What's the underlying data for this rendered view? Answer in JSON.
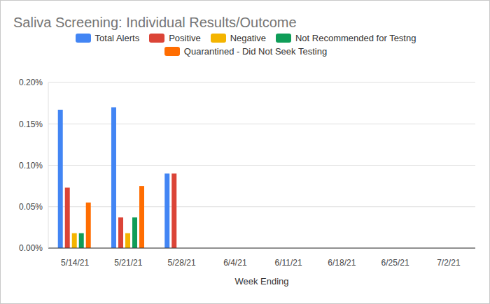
{
  "chart_data": {
    "type": "bar",
    "title": "Saliva Screening: Individual Results/Outcome",
    "xlabel": "Week Ending",
    "categories": [
      "5/14/21",
      "5/21/21",
      "5/28/21",
      "6/4/21",
      "6/11/21",
      "6/18/21",
      "6/25/21",
      "7/2/21"
    ],
    "series": [
      {
        "name": "Total Alerts",
        "color": "#4285f4",
        "values": [
          0.167,
          0.17,
          0.09,
          null,
          null,
          null,
          null,
          null
        ]
      },
      {
        "name": "Positive",
        "color": "#db4437",
        "values": [
          0.073,
          0.037,
          0.09,
          null,
          null,
          null,
          null,
          null
        ]
      },
      {
        "name": "Negative",
        "color": "#f4b400",
        "values": [
          0.018,
          0.018,
          null,
          null,
          null,
          null,
          null,
          null
        ]
      },
      {
        "name": "Not Recommended for Testng",
        "color": "#0f9d58",
        "values": [
          0.018,
          0.037,
          null,
          null,
          null,
          null,
          null,
          null
        ]
      },
      {
        "name": "Quarantined - Did Not Seek Testing",
        "color": "#ff6d01",
        "values": [
          0.055,
          0.075,
          null,
          null,
          null,
          null,
          null,
          null
        ]
      }
    ],
    "ylim": [
      0,
      0.2
    ],
    "yticks": [
      {
        "value": 0,
        "label": "0.00%"
      },
      {
        "value": 0.05,
        "label": "0.05%"
      },
      {
        "value": 0.1,
        "label": "0.10%"
      },
      {
        "value": 0.15,
        "label": "0.15%"
      },
      {
        "value": 0.2,
        "label": "0.20%"
      }
    ],
    "grid": true,
    "legend": "top"
  }
}
